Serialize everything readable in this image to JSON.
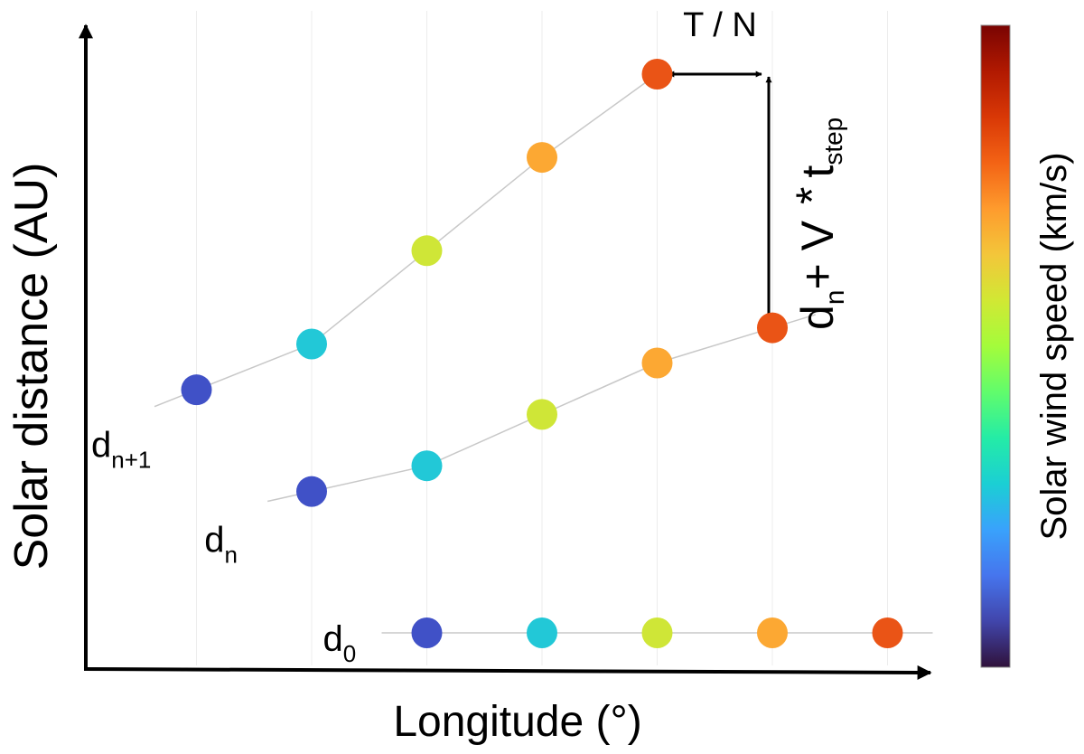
{
  "axes": {
    "x_label": "Longitude (°)",
    "y_label": "Solar distance  (AU)"
  },
  "colorbar": {
    "label": "Solar wind speed (km/s)",
    "stops": [
      "#30123b",
      "#4145ab",
      "#4675ed",
      "#39a2fc",
      "#1bcfd4",
      "#24eca6",
      "#61fc6c",
      "#a4fc3b",
      "#d1e834",
      "#f3c63a",
      "#fe9b2d",
      "#f36315",
      "#d93806",
      "#b11901",
      "#7a0402"
    ]
  },
  "annotations": {
    "period": "T / N",
    "step_main": "d",
    "step_main_sub": "n",
    "step_plus_v": "+ V",
    "step_star": "*",
    "step_t": "t",
    "step_t_sub": "step"
  },
  "chart_data": {
    "type": "scatter",
    "longitude_columns": 7,
    "color_levels": {
      "1": "#4051c7",
      "2": "#22c8d7",
      "3": "#cfe637",
      "4": "#fca833",
      "5": "#ea5416"
    },
    "rows": [
      {
        "name": "d",
        "sub": "n+1",
        "points": [
          {
            "col": 1,
            "y": 0.435,
            "speed": 1
          },
          {
            "col": 2,
            "y": 0.517,
            "speed": 2
          },
          {
            "col": 3,
            "y": 0.684,
            "speed": 3
          },
          {
            "col": 4,
            "y": 0.851,
            "speed": 4
          },
          {
            "col": 5,
            "y": 1.0,
            "speed": 5
          }
        ]
      },
      {
        "name": "d",
        "sub": "n",
        "points": [
          {
            "col": 2,
            "y": 0.253,
            "speed": 1
          },
          {
            "col": 3,
            "y": 0.299,
            "speed": 2
          },
          {
            "col": 4,
            "y": 0.391,
            "speed": 3
          },
          {
            "col": 5,
            "y": 0.483,
            "speed": 4
          },
          {
            "col": 6,
            "y": 0.546,
            "speed": 5
          }
        ]
      },
      {
        "name": "d",
        "sub": "0",
        "points": [
          {
            "col": 3,
            "y": 0.0,
            "speed": 1
          },
          {
            "col": 4,
            "y": 0.0,
            "speed": 2
          },
          {
            "col": 5,
            "y": 0.0,
            "speed": 3
          },
          {
            "col": 6,
            "y": 0.0,
            "speed": 4
          },
          {
            "col": 7,
            "y": 0.0,
            "speed": 5
          }
        ]
      }
    ]
  }
}
